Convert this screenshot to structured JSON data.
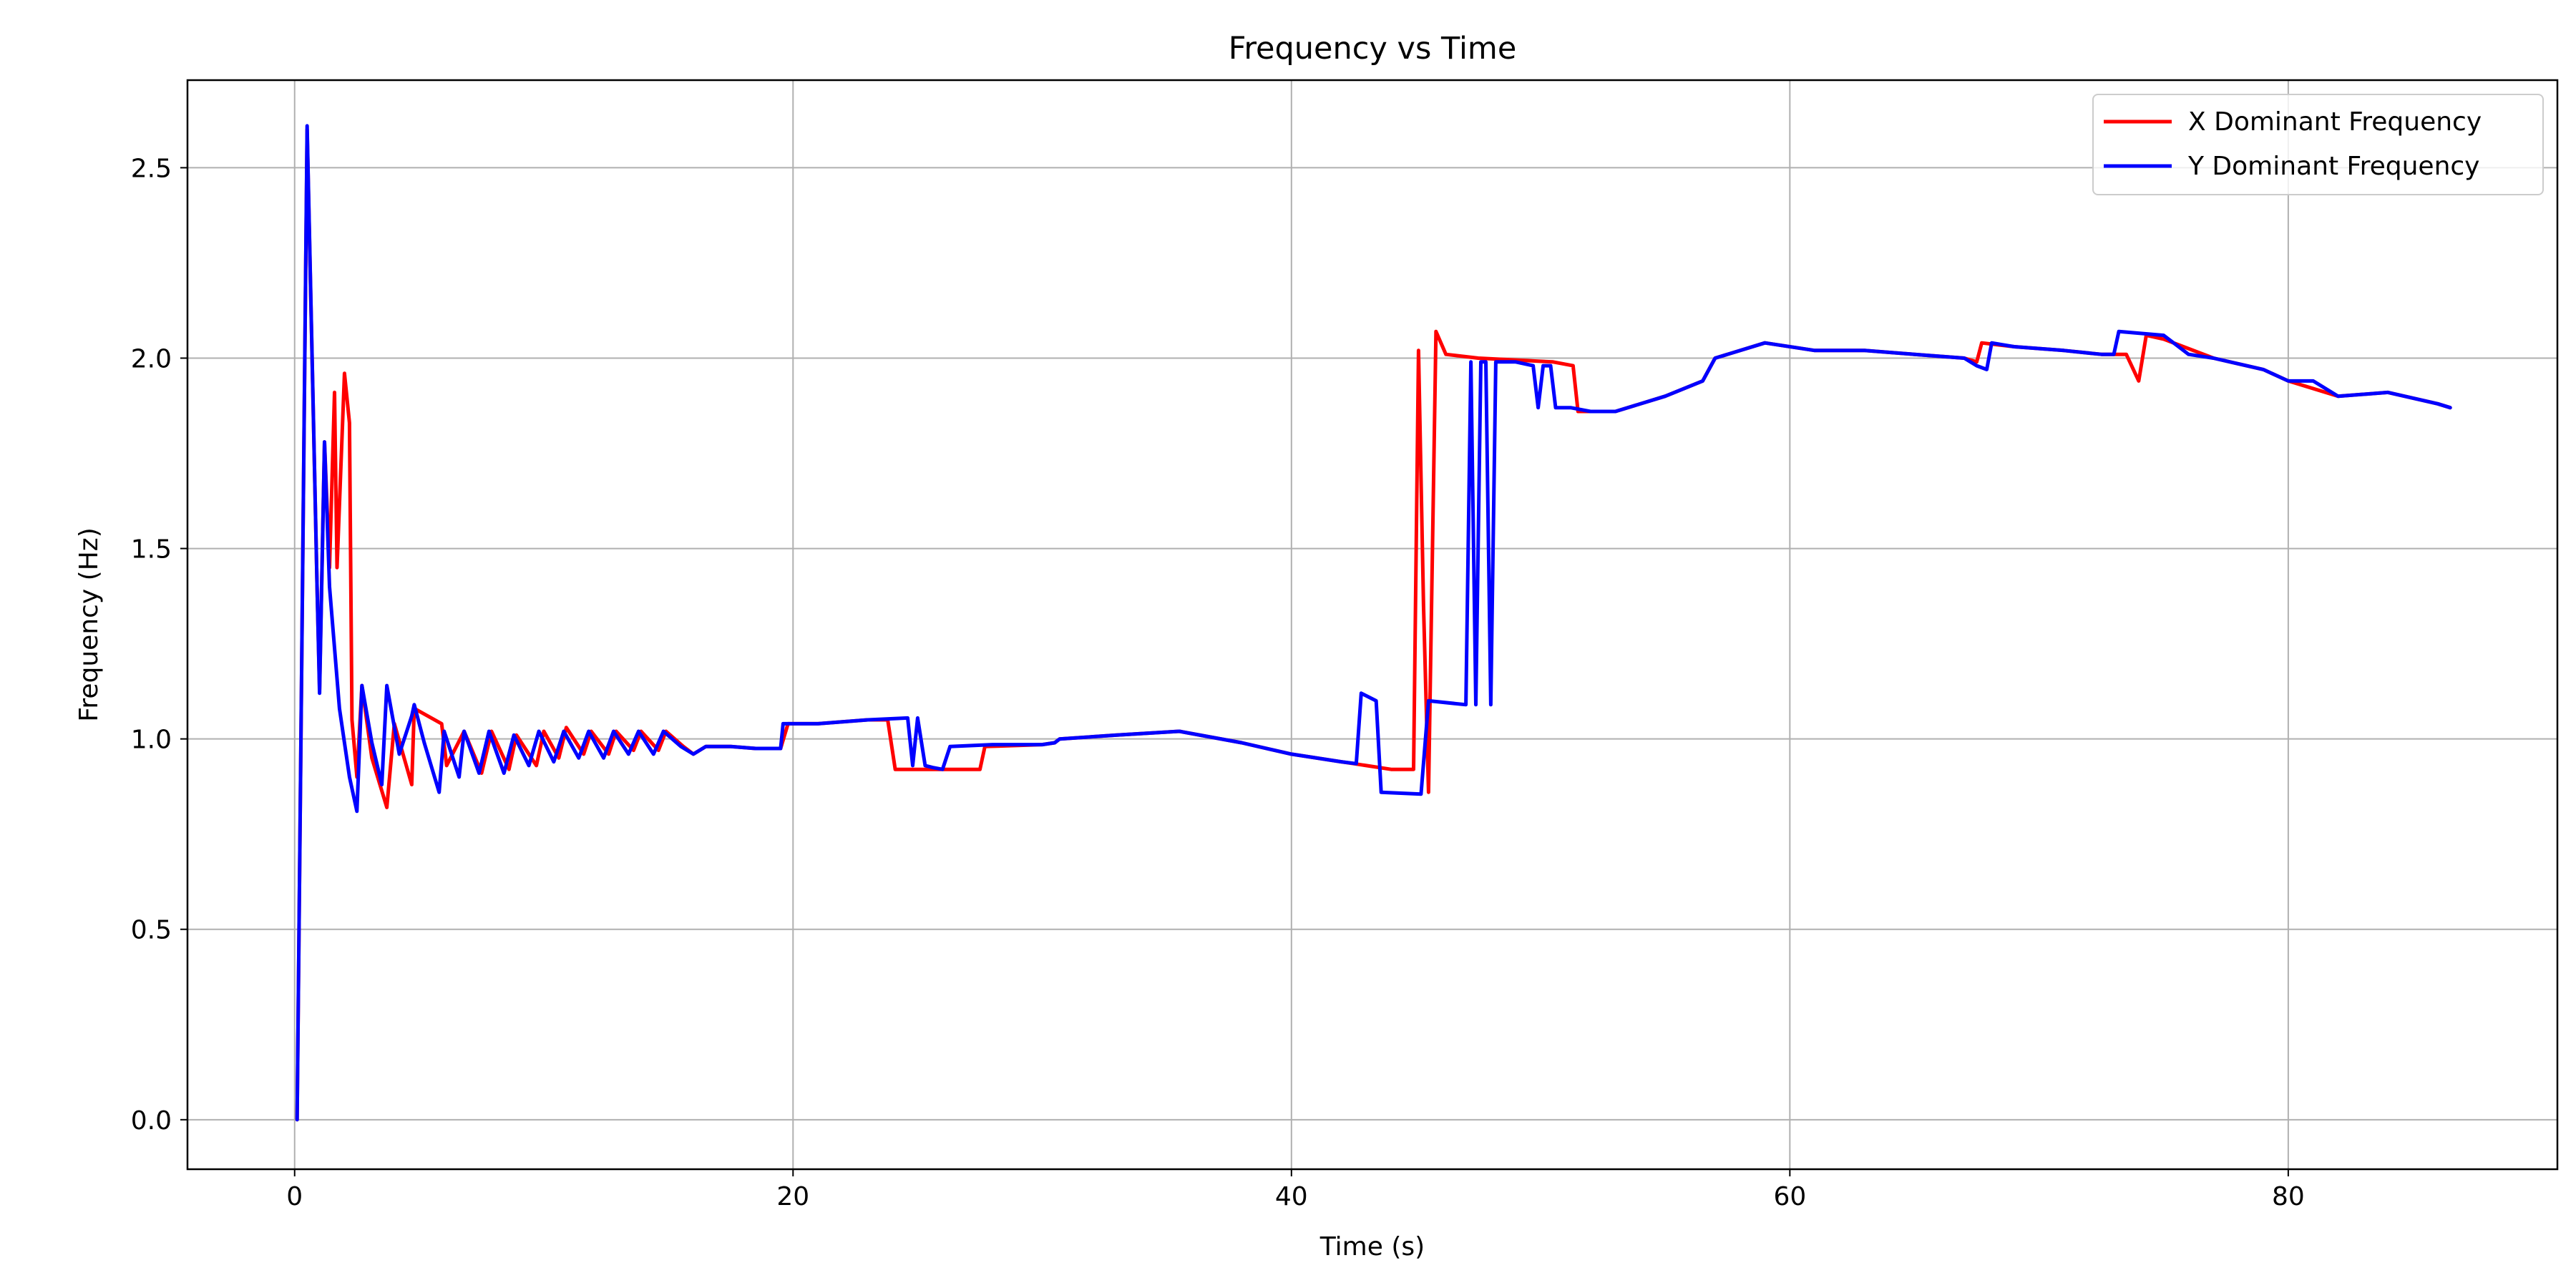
{
  "chart_data": {
    "type": "line",
    "title": "Frequency vs Time",
    "xlabel": "Time (s)",
    "ylabel": "Frequency (Hz)",
    "xlim": [
      -4.3,
      90.8
    ],
    "ylim": [
      -0.13,
      2.73
    ],
    "xticks": [
      0,
      20,
      40,
      60,
      80
    ],
    "xtick_labels": [
      "0",
      "20",
      "40",
      "60",
      "80"
    ],
    "yticks": [
      0.0,
      0.5,
      1.0,
      1.5,
      2.0,
      2.5
    ],
    "ytick_labels": [
      "0.0",
      "0.5",
      "1.0",
      "1.5",
      "2.0",
      "2.5"
    ],
    "grid": true,
    "legend_position": "top-right",
    "series": [
      {
        "name": "X Dominant Frequency",
        "color": "#ff0000",
        "points": [
          [
            0.1,
            0.0
          ],
          [
            0.5,
            2.6
          ],
          [
            0.9,
            1.4
          ],
          [
            1.0,
            1.13
          ],
          [
            1.2,
            1.78
          ],
          [
            1.4,
            1.45
          ],
          [
            1.6,
            1.91
          ],
          [
            1.7,
            1.45
          ],
          [
            2.0,
            1.96
          ],
          [
            2.2,
            1.83
          ],
          [
            2.3,
            1.05
          ],
          [
            2.5,
            0.9
          ],
          [
            2.7,
            1.14
          ],
          [
            3.1,
            0.95
          ],
          [
            3.7,
            0.82
          ],
          [
            4.0,
            1.04
          ],
          [
            4.7,
            0.88
          ],
          [
            4.8,
            1.08
          ],
          [
            5.9,
            1.04
          ],
          [
            6.1,
            0.93
          ],
          [
            6.8,
            1.02
          ],
          [
            7.5,
            0.91
          ],
          [
            7.9,
            1.02
          ],
          [
            8.6,
            0.92
          ],
          [
            8.9,
            1.01
          ],
          [
            9.7,
            0.93
          ],
          [
            10.0,
            1.02
          ],
          [
            10.6,
            0.95
          ],
          [
            10.9,
            1.03
          ],
          [
            11.6,
            0.96
          ],
          [
            11.9,
            1.02
          ],
          [
            12.6,
            0.96
          ],
          [
            12.9,
            1.02
          ],
          [
            13.6,
            0.97
          ],
          [
            13.9,
            1.02
          ],
          [
            14.6,
            0.97
          ],
          [
            14.9,
            1.02
          ],
          [
            15.6,
            0.98
          ],
          [
            16.0,
            0.96
          ],
          [
            16.5,
            0.98
          ],
          [
            17.5,
            0.98
          ],
          [
            18.5,
            0.975
          ],
          [
            19.5,
            0.975
          ],
          [
            19.8,
            1.04
          ],
          [
            20.5,
            1.04
          ],
          [
            21.0,
            1.04
          ],
          [
            23.0,
            1.05
          ],
          [
            23.8,
            1.05
          ],
          [
            24.1,
            0.92
          ],
          [
            25.0,
            0.92
          ],
          [
            27.0,
            0.92
          ],
          [
            27.5,
            0.92
          ],
          [
            27.7,
            0.98
          ],
          [
            30.0,
            0.985
          ],
          [
            30.5,
            0.99
          ],
          [
            30.7,
            1.0
          ],
          [
            33.0,
            1.01
          ],
          [
            35.5,
            1.02
          ],
          [
            38.0,
            0.99
          ],
          [
            40.0,
            0.96
          ],
          [
            42.0,
            0.94
          ],
          [
            42.5,
            0.935
          ],
          [
            44.0,
            0.92
          ],
          [
            44.9,
            0.92
          ],
          [
            45.1,
            2.02
          ],
          [
            45.3,
            1.35
          ],
          [
            45.5,
            0.86
          ],
          [
            45.8,
            2.07
          ],
          [
            46.2,
            2.01
          ],
          [
            47.5,
            2.0
          ],
          [
            50.5,
            1.99
          ],
          [
            51.3,
            1.98
          ],
          [
            51.5,
            1.86
          ],
          [
            52.0,
            1.86
          ],
          [
            53.0,
            1.86
          ],
          [
            55.0,
            1.9
          ],
          [
            56.5,
            1.94
          ],
          [
            57.0,
            2.0
          ],
          [
            59.0,
            2.04
          ],
          [
            61.0,
            2.02
          ],
          [
            63.0,
            2.02
          ],
          [
            65.0,
            2.01
          ],
          [
            67.0,
            2.0
          ],
          [
            67.5,
            1.99
          ],
          [
            67.7,
            2.04
          ],
          [
            69.0,
            2.03
          ],
          [
            71.0,
            2.02
          ],
          [
            72.5,
            2.01
          ],
          [
            73.5,
            2.01
          ],
          [
            74.0,
            1.94
          ],
          [
            74.3,
            2.06
          ],
          [
            75.0,
            2.05
          ],
          [
            77.0,
            2.0
          ],
          [
            79.0,
            1.97
          ],
          [
            80.0,
            1.94
          ],
          [
            82.0,
            1.9
          ],
          [
            84.0,
            1.91
          ],
          [
            86.0,
            1.88
          ],
          [
            86.5,
            1.87
          ]
        ]
      },
      {
        "name": "Y Dominant Frequency",
        "color": "#0000ff",
        "points": [
          [
            0.1,
            0.0
          ],
          [
            0.5,
            2.61
          ],
          [
            0.9,
            1.4
          ],
          [
            1.0,
            1.12
          ],
          [
            1.2,
            1.78
          ],
          [
            1.4,
            1.4
          ],
          [
            1.8,
            1.08
          ],
          [
            2.2,
            0.9
          ],
          [
            2.5,
            0.81
          ],
          [
            2.7,
            1.14
          ],
          [
            3.1,
            0.99
          ],
          [
            3.5,
            0.88
          ],
          [
            3.7,
            1.14
          ],
          [
            4.2,
            0.96
          ],
          [
            4.7,
            1.06
          ],
          [
            4.8,
            1.09
          ],
          [
            5.2,
            0.99
          ],
          [
            5.8,
            0.86
          ],
          [
            6.0,
            1.02
          ],
          [
            6.6,
            0.9
          ],
          [
            6.8,
            1.02
          ],
          [
            7.4,
            0.91
          ],
          [
            7.8,
            1.02
          ],
          [
            8.4,
            0.91
          ],
          [
            8.8,
            1.01
          ],
          [
            9.4,
            0.93
          ],
          [
            9.8,
            1.02
          ],
          [
            10.4,
            0.94
          ],
          [
            10.8,
            1.02
          ],
          [
            11.4,
            0.95
          ],
          [
            11.8,
            1.02
          ],
          [
            12.4,
            0.95
          ],
          [
            12.8,
            1.02
          ],
          [
            13.4,
            0.96
          ],
          [
            13.8,
            1.02
          ],
          [
            14.4,
            0.96
          ],
          [
            14.8,
            1.02
          ],
          [
            15.5,
            0.98
          ],
          [
            16.0,
            0.96
          ],
          [
            16.5,
            0.98
          ],
          [
            17.5,
            0.98
          ],
          [
            18.5,
            0.975
          ],
          [
            19.5,
            0.975
          ],
          [
            19.6,
            1.04
          ],
          [
            20.0,
            1.04
          ],
          [
            21.0,
            1.04
          ],
          [
            23.0,
            1.05
          ],
          [
            24.6,
            1.055
          ],
          [
            24.8,
            0.93
          ],
          [
            25.0,
            1.055
          ],
          [
            25.3,
            0.93
          ],
          [
            25.6,
            0.925
          ],
          [
            26.0,
            0.92
          ],
          [
            26.3,
            0.98
          ],
          [
            28.0,
            0.985
          ],
          [
            30.0,
            0.985
          ],
          [
            30.5,
            0.99
          ],
          [
            30.7,
            1.0
          ],
          [
            33.0,
            1.01
          ],
          [
            35.5,
            1.02
          ],
          [
            38.0,
            0.99
          ],
          [
            40.0,
            0.96
          ],
          [
            42.0,
            0.94
          ],
          [
            42.6,
            0.935
          ],
          [
            42.8,
            1.12
          ],
          [
            43.4,
            1.1
          ],
          [
            43.6,
            0.86
          ],
          [
            45.2,
            0.855
          ],
          [
            45.5,
            1.1
          ],
          [
            47.0,
            1.09
          ],
          [
            47.2,
            1.99
          ],
          [
            47.4,
            1.09
          ],
          [
            47.6,
            1.99
          ],
          [
            47.8,
            1.99
          ],
          [
            48.0,
            1.09
          ],
          [
            48.2,
            1.99
          ],
          [
            49.0,
            1.99
          ],
          [
            49.7,
            1.98
          ],
          [
            49.9,
            1.87
          ],
          [
            50.1,
            1.98
          ],
          [
            50.4,
            1.98
          ],
          [
            50.6,
            1.87
          ],
          [
            51.2,
            1.87
          ],
          [
            52.0,
            1.86
          ],
          [
            53.0,
            1.86
          ],
          [
            55.0,
            1.9
          ],
          [
            56.5,
            1.94
          ],
          [
            57.0,
            2.0
          ],
          [
            59.0,
            2.04
          ],
          [
            61.0,
            2.02
          ],
          [
            63.0,
            2.02
          ],
          [
            65.0,
            2.01
          ],
          [
            67.0,
            2.0
          ],
          [
            67.5,
            1.98
          ],
          [
            67.9,
            1.97
          ],
          [
            68.1,
            2.04
          ],
          [
            69.0,
            2.03
          ],
          [
            71.0,
            2.02
          ],
          [
            72.5,
            2.01
          ],
          [
            73.0,
            2.01
          ],
          [
            73.2,
            2.07
          ],
          [
            75.0,
            2.06
          ],
          [
            76.0,
            2.01
          ],
          [
            77.0,
            2.0
          ],
          [
            79.0,
            1.97
          ],
          [
            80.0,
            1.94
          ],
          [
            81.0,
            1.94
          ],
          [
            82.0,
            1.9
          ],
          [
            84.0,
            1.91
          ],
          [
            86.0,
            1.88
          ],
          [
            86.5,
            1.87
          ]
        ]
      }
    ]
  }
}
